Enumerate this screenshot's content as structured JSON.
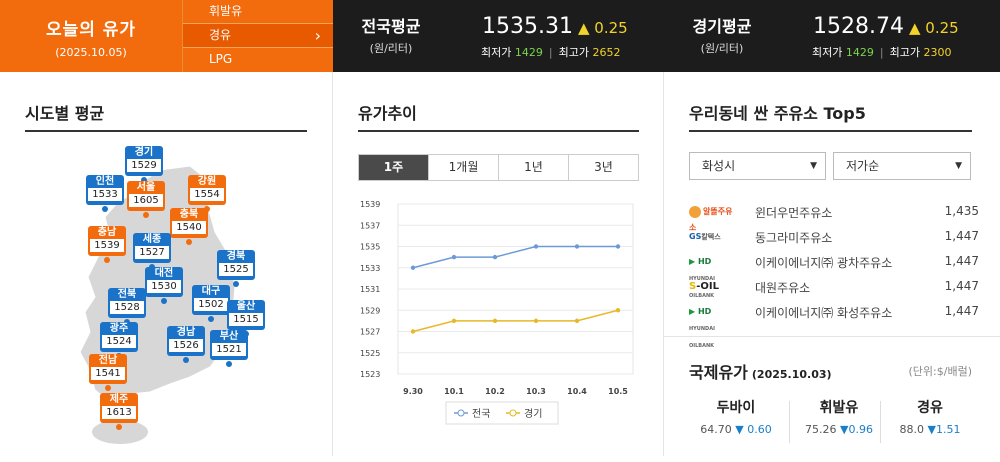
{
  "header": {
    "title": "오늘의 유가",
    "date": "(2025.10.05)",
    "fuel_tabs": [
      {
        "label": "휘발유",
        "active": false
      },
      {
        "label": "경유",
        "active": true
      },
      {
        "label": "LPG",
        "active": false
      }
    ],
    "national": {
      "label": "전국평균",
      "unit": "(원/리터)",
      "price": "1535.31",
      "change": "▲ 0.25",
      "min_label": "최저가",
      "min": "1429",
      "max_label": "최고가",
      "max": "2652"
    },
    "gyeonggi": {
      "label": "경기평균",
      "unit": "(원/리터)",
      "price": "1528.74",
      "change": "▲ 0.25",
      "min_label": "최저가",
      "min": "1429",
      "max_label": "최고가",
      "max": "2300"
    }
  },
  "regional": {
    "title": "시도별 평균",
    "regions": [
      {
        "name": "경기",
        "value": "1529",
        "color": "blue"
      },
      {
        "name": "인천",
        "value": "1533",
        "color": "blue"
      },
      {
        "name": "서울",
        "value": "1605",
        "color": "orange"
      },
      {
        "name": "강원",
        "value": "1554",
        "color": "orange"
      },
      {
        "name": "충북",
        "value": "1540",
        "color": "orange"
      },
      {
        "name": "충남",
        "value": "1539",
        "color": "orange"
      },
      {
        "name": "세종",
        "value": "1527",
        "color": "blue"
      },
      {
        "name": "경북",
        "value": "1525",
        "color": "blue"
      },
      {
        "name": "대전",
        "value": "1530",
        "color": "blue"
      },
      {
        "name": "전북",
        "value": "1528",
        "color": "blue"
      },
      {
        "name": "대구",
        "value": "1502",
        "color": "blue"
      },
      {
        "name": "울산",
        "value": "1515",
        "color": "blue"
      },
      {
        "name": "광주",
        "value": "1524",
        "color": "blue"
      },
      {
        "name": "경남",
        "value": "1526",
        "color": "blue"
      },
      {
        "name": "부산",
        "value": "1521",
        "color": "blue"
      },
      {
        "name": "전남",
        "value": "1541",
        "color": "orange"
      },
      {
        "name": "제주",
        "value": "1613",
        "color": "orange"
      }
    ]
  },
  "trend": {
    "title": "유가추이",
    "tabs": [
      {
        "label": "1주",
        "active": true
      },
      {
        "label": "1개월",
        "active": false
      },
      {
        "label": "1년",
        "active": false
      },
      {
        "label": "3년",
        "active": false
      }
    ]
  },
  "chart_data": {
    "type": "line",
    "x": [
      "9.30",
      "10.1",
      "10.2",
      "10.3",
      "10.4",
      "10.5"
    ],
    "series": [
      {
        "name": "전국",
        "color": "#6c9ad6",
        "values": [
          1533,
          1534,
          1534,
          1535,
          1535,
          1535
        ]
      },
      {
        "name": "경기",
        "color": "#e8b829",
        "values": [
          1527,
          1528,
          1528,
          1528,
          1528,
          1529
        ]
      }
    ],
    "yticks": [
      1523,
      1525,
      1527,
      1529,
      1531,
      1533,
      1535,
      1537,
      1539
    ],
    "ylim": [
      1523,
      1539
    ],
    "grid": true,
    "legend": "bottom"
  },
  "cheap": {
    "title": "우리동네 싼 주유소 Top5",
    "city": "화성시",
    "sort": "저가순",
    "stations": [
      {
        "brand": "알뜰주유소",
        "brand_icon": "altteul-logo",
        "name": "윈더우먼주유소",
        "price": "1,435"
      },
      {
        "brand": "GS칼텍스",
        "brand_icon": "gs-caltex-logo",
        "name": "동그라미주유소",
        "price": "1,447"
      },
      {
        "brand": "HD HYUNDAI OILBANK",
        "brand_icon": "hd-oilbank-logo",
        "name": "이케이에너지㈜ 광차주유소",
        "price": "1,447"
      },
      {
        "brand": "S-OIL",
        "brand_icon": "s-oil-logo",
        "name": "대원주유소",
        "price": "1,447"
      },
      {
        "brand": "HD HYUNDAI OILBANK",
        "brand_icon": "hd-oilbank-logo",
        "name": "이케이에너지㈜ 화성주유소",
        "price": "1,447"
      }
    ]
  },
  "intl": {
    "title": "국제유가",
    "date": "(2025.10.03)",
    "unit": "(단위:$/배럴)",
    "items": [
      {
        "name": "두바이",
        "price": "64.70",
        "change": "▼ 0.60"
      },
      {
        "name": "휘발유",
        "price": "75.26",
        "change": "▼0.96"
      },
      {
        "name": "경유",
        "price": "88.0",
        "change": "▼1.51"
      }
    ]
  }
}
